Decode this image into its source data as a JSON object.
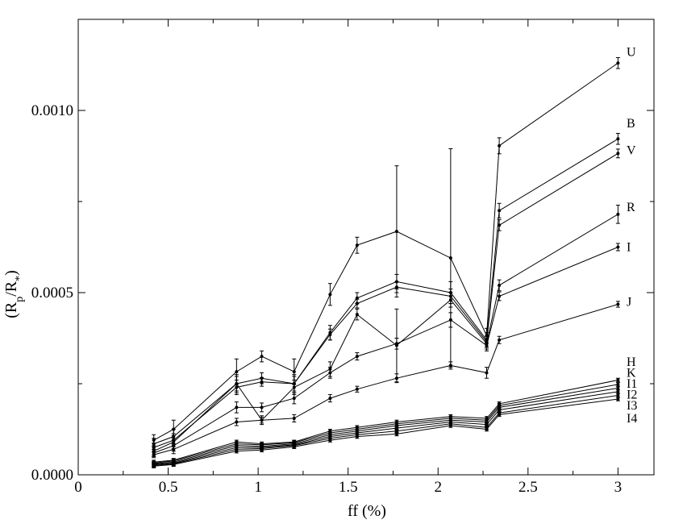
{
  "chart_data": {
    "type": "line",
    "title": "",
    "xlabel": "ff (%)",
    "ylabel_parts": {
      "base": "(R",
      "sub1": "p",
      "mid": "/R",
      "sub2": "*",
      "end": ")"
    },
    "xlim": [
      0,
      3.2
    ],
    "ylim": [
      0,
      0.00125
    ],
    "x_major_ticks": [
      0,
      0.5,
      1,
      1.5,
      2,
      2.5,
      3
    ],
    "x_tick_labels": [
      "0",
      "0.5",
      "1",
      "1.5",
      "2",
      "2.5",
      "3"
    ],
    "y_major_ticks": [
      0,
      0.0005,
      0.001
    ],
    "y_tick_labels": [
      "0.0000",
      "0.0005",
      "0.0010"
    ],
    "grid": false,
    "legend": "inline labels at right end",
    "x": [
      0.42,
      0.53,
      0.88,
      1.02,
      1.2,
      1.4,
      1.55,
      1.77,
      2.07,
      2.27,
      2.34,
      3.0
    ],
    "series": [
      {
        "name": "U",
        "values": [
          9.5e-05,
          0.000125,
          0.000283,
          0.000325,
          0.000283,
          0.000495,
          0.00063,
          0.000668,
          0.000595,
          0.000382,
          0.000903,
          0.00113
        ],
        "errors": [
          1.5e-05,
          2.5e-05,
          3.5e-05,
          1.5e-05,
          3.5e-05,
          3e-05,
          2.2e-05,
          0.00018,
          0.0003,
          2e-05,
          2.2e-05,
          1.5e-05
        ]
      },
      {
        "name": "B",
        "values": [
          8.5e-05,
          0.000105,
          0.00025,
          0.000265,
          0.00025,
          0.00039,
          0.000485,
          0.00053,
          0.0005,
          0.00037,
          0.000725,
          0.000922
        ],
        "errors": [
          1.5e-05,
          2e-05,
          2.5e-05,
          1.5e-05,
          2.5e-05,
          2e-05,
          1.5e-05,
          2e-05,
          3e-05,
          2e-05,
          2e-05,
          1.5e-05
        ]
      },
      {
        "name": "V",
        "values": [
          7.5e-05,
          9.5e-05,
          0.00024,
          0.000255,
          0.00025,
          0.000385,
          0.00047,
          0.000515,
          0.00049,
          0.000365,
          0.000685,
          0.000882
        ],
        "errors": [
          1.2e-05,
          1.8e-05,
          2e-05,
          1.2e-05,
          2e-05,
          1.5e-05,
          1.2e-05,
          1.5e-05,
          2e-05,
          1.5e-05,
          1.5e-05,
          1.2e-05
        ]
      },
      {
        "name": "R",
        "values": [
          6.5e-05,
          9e-05,
          0.00025,
          0.00015,
          0.00024,
          0.00029,
          0.00044,
          0.000355,
          0.00048,
          0.00036,
          0.00052,
          0.000715
        ],
        "errors": [
          1.2e-05,
          1.8e-05,
          2e-05,
          1.2e-05,
          2e-05,
          2e-05,
          1.5e-05,
          0.0001,
          2e-05,
          1.5e-05,
          1.5e-05,
          2.5e-05
        ]
      },
      {
        "name": "I",
        "values": [
          6e-05,
          8e-05,
          0.000185,
          0.000185,
          0.00021,
          0.00028,
          0.000325,
          0.00036,
          0.000425,
          0.000355,
          0.00049,
          0.000625
        ],
        "errors": [
          1e-05,
          1.5e-05,
          1.5e-05,
          1.2e-05,
          1.5e-05,
          1.5e-05,
          1e-05,
          1.5e-05,
          2e-05,
          1.5e-05,
          1.2e-05,
          1e-05
        ]
      },
      {
        "name": "J",
        "values": [
          5.5e-05,
          7e-05,
          0.000145,
          0.00015,
          0.000155,
          0.00021,
          0.000235,
          0.000265,
          0.0003,
          0.00028,
          0.00037,
          0.000468
        ],
        "errors": [
          8e-06,
          1.2e-05,
          1e-05,
          8e-06,
          1e-05,
          1e-05,
          8e-06,
          1.2e-05,
          1e-05,
          1.5e-05,
          1e-05,
          8e-06
        ]
      },
      {
        "name": "H",
        "values": [
          3.5e-05,
          4e-05,
          9e-05,
          8.5e-05,
          9e-05,
          0.00012,
          0.00013,
          0.000145,
          0.00016,
          0.000155,
          0.000195,
          0.00026
        ],
        "errors": [
          5e-06,
          5e-06,
          5e-06,
          5e-06,
          5e-06,
          5e-06,
          5e-06,
          5e-06,
          5e-06,
          5e-06,
          5e-06,
          5e-06
        ]
      },
      {
        "name": "K",
        "values": [
          3.2e-05,
          3.8e-05,
          8.5e-05,
          8.2e-05,
          8.8e-05,
          0.000115,
          0.000125,
          0.00014,
          0.000155,
          0.00015,
          0.00019,
          0.000248
        ],
        "errors": [
          5e-06,
          5e-06,
          5e-06,
          5e-06,
          5e-06,
          5e-06,
          5e-06,
          5e-06,
          5e-06,
          5e-06,
          5e-06,
          5e-06
        ]
      },
      {
        "name": "I1",
        "values": [
          3e-05,
          3.5e-05,
          8e-05,
          7.8e-05,
          8.5e-05,
          0.00011,
          0.00012,
          0.000135,
          0.00015,
          0.000145,
          0.000185,
          0.000238
        ],
        "errors": [
          5e-06,
          5e-06,
          5e-06,
          5e-06,
          5e-06,
          5e-06,
          5e-06,
          5e-06,
          5e-06,
          5e-06,
          5e-06,
          5e-06
        ]
      },
      {
        "name": "I2",
        "values": [
          2.8e-05,
          3.2e-05,
          7.5e-05,
          7.5e-05,
          8.2e-05,
          0.000105,
          0.000115,
          0.000128,
          0.000145,
          0.000138,
          0.000178,
          0.000228
        ],
        "errors": [
          5e-06,
          5e-06,
          5e-06,
          5e-06,
          5e-06,
          5e-06,
          5e-06,
          5e-06,
          5e-06,
          5e-06,
          5e-06,
          5e-06
        ]
      },
      {
        "name": "I3",
        "values": [
          2.6e-05,
          3e-05,
          7e-05,
          7.2e-05,
          8e-05,
          0.0001,
          0.00011,
          0.00012,
          0.00014,
          0.00013,
          0.00017,
          0.000218
        ],
        "errors": [
          5e-06,
          5e-06,
          5e-06,
          5e-06,
          5e-06,
          5e-06,
          5e-06,
          5e-06,
          5e-06,
          5e-06,
          5e-06,
          5e-06
        ]
      },
      {
        "name": "I4",
        "values": [
          2.4e-05,
          2.8e-05,
          6.5e-05,
          6.8e-05,
          7.7e-05,
          9.5e-05,
          0.000105,
          0.000112,
          0.000135,
          0.000125,
          0.000165,
          0.000208
        ],
        "errors": [
          5e-06,
          5e-06,
          5e-06,
          5e-06,
          5e-06,
          5e-06,
          5e-06,
          5e-06,
          5e-06,
          5e-06,
          5e-06,
          5e-06
        ]
      }
    ],
    "label_positions": [
      {
        "name": "U",
        "y": 0.00116
      },
      {
        "name": "B",
        "y": 0.000965
      },
      {
        "name": "V",
        "y": 0.00089
      },
      {
        "name": "R",
        "y": 0.000735
      },
      {
        "name": "I",
        "y": 0.000625
      },
      {
        "name": "J",
        "y": 0.000475
      },
      {
        "name": "H",
        "y": 0.00031
      },
      {
        "name": "K",
        "y": 0.00028
      },
      {
        "name": "I1",
        "y": 0.00025
      },
      {
        "name": "I2",
        "y": 0.00022
      },
      {
        "name": "I3",
        "y": 0.00019
      },
      {
        "name": "I4",
        "y": 0.000155
      }
    ]
  }
}
